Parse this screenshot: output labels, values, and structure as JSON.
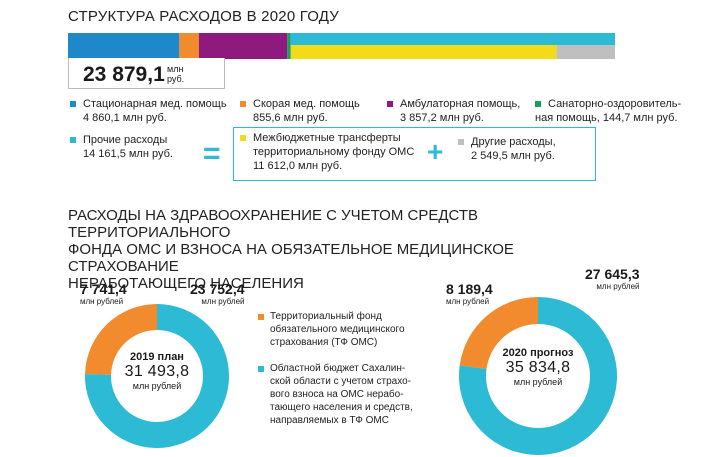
{
  "header": {
    "title": "СТРУКТУРА РАСХОДОВ В 2020 ГОДУ"
  },
  "total": {
    "value": "23 879,1",
    "unit_line1": "млн",
    "unit_line2": "руб."
  },
  "colors": {
    "stationary": "#1e88c8",
    "ambulance": "#f28a2e",
    "outpatient": "#8e1a7e",
    "sanatorium": "#17a060",
    "other": "#2dbad4",
    "transfers": "#f2dc1a",
    "other2": "#bfbfbf"
  },
  "legend": [
    {
      "label": "Стационарная мед. помощь",
      "value": "4 860,1 млн руб."
    },
    {
      "label": "Скорая мед. помощь",
      "value": "855,6 млн руб."
    },
    {
      "label": "Амбулаторная помощь,",
      "value": "3 857,2 млн руб."
    },
    {
      "label": "Санаторно-оздоровитель-",
      "value": "ная помощь, 144,7 млн руб."
    },
    {
      "label": "Прочие расходы",
      "value": "14 161,5 млн руб."
    },
    {
      "label": "Межбюджетные трансферты",
      "label2": "территориальному фонду ОМС",
      "value": "11 612,0 млн руб."
    },
    {
      "label": "Другие расходы,",
      "value": "2 549,5 млн руб."
    }
  ],
  "section2": {
    "title_line1": "РАСХОДЫ НА ЗДРАВООХРАНЕНИЕ С УЧЕТОМ СРЕДСТВ ТЕРРИТОРИАЛЬНОГО",
    "title_line2": "ФОНДА ОМС И ВЗНОСА НА ОБЯЗАТЕЛЬНОЕ МЕДИЦИНСКОЕ СТРАХОВАНИЕ",
    "title_line3": "НЕРАБОТАЮЩЕГО НАСЕЛЕНИЯ"
  },
  "donut_labels": {
    "left_small": "7 741,4",
    "left_big": "23 752,4",
    "right_small": "8 189,4",
    "right_big": "27 645,3",
    "unit": "млн рублей",
    "left_center_title": "2019 план",
    "left_center_total": "31 493,8",
    "right_center_title": "2020 прогноз",
    "right_center_total": "35 834,8"
  },
  "legend2": {
    "item1": [
      "Территориальный фонд",
      "обязательного медицинского",
      "страхования (ТФ ОМС)"
    ],
    "item2": [
      "Областной бюджет Сахалин-",
      "ской области с учетом страхо-",
      "вого взноса на ОМС нерабо-",
      "тающего населения и средств,",
      "направляемых в ТФ ОМС"
    ]
  },
  "chart_data": [
    {
      "type": "bar",
      "title": "СТРУКТУРА РАСХОДОВ В 2020 ГОДУ",
      "stacked": true,
      "unit": "млн руб.",
      "total": 23879.1,
      "top_row": [
        {
          "name": "Стационарная мед. помощь",
          "value": 4860.1
        },
        {
          "name": "Скорая мед. помощь",
          "value": 855.6
        },
        {
          "name": "Амбулаторная помощь",
          "value": 3857.2
        },
        {
          "name": "Санаторно-оздоровительная помощь",
          "value": 144.7
        },
        {
          "name": "Прочие расходы",
          "value": 14161.5
        }
      ],
      "bottom_row_breakdown_of_other": [
        {
          "name": "Межбюджетные трансферты территориальному фонду ОМС",
          "value": 11612.0
        },
        {
          "name": "Другие расходы",
          "value": 2549.5
        }
      ]
    },
    {
      "type": "pie",
      "donut": true,
      "title": "2019 план",
      "total": 31493.8,
      "unit": "млн рублей",
      "slices": [
        {
          "name": "Территориальный фонд обязательного медицинского страхования (ТФ ОМС)",
          "value": 7741.4
        },
        {
          "name": "Областной бюджет Сахалинской области с учетом страхового взноса на ОМС неработающего населения и средств, направляемых в ТФ ОМС",
          "value": 23752.4
        }
      ]
    },
    {
      "type": "pie",
      "donut": true,
      "title": "2020 прогноз",
      "total": 35834.8,
      "unit": "млн рублей",
      "slices": [
        {
          "name": "Территориальный фонд обязательного медицинского страхования (ТФ ОМС)",
          "value": 8189.4
        },
        {
          "name": "Областной бюджет Сахалинской области с учетом страхового взноса на ОМС неработающего населения и средств, направляемых в ТФ ОМС",
          "value": 27645.3
        }
      ]
    }
  ]
}
